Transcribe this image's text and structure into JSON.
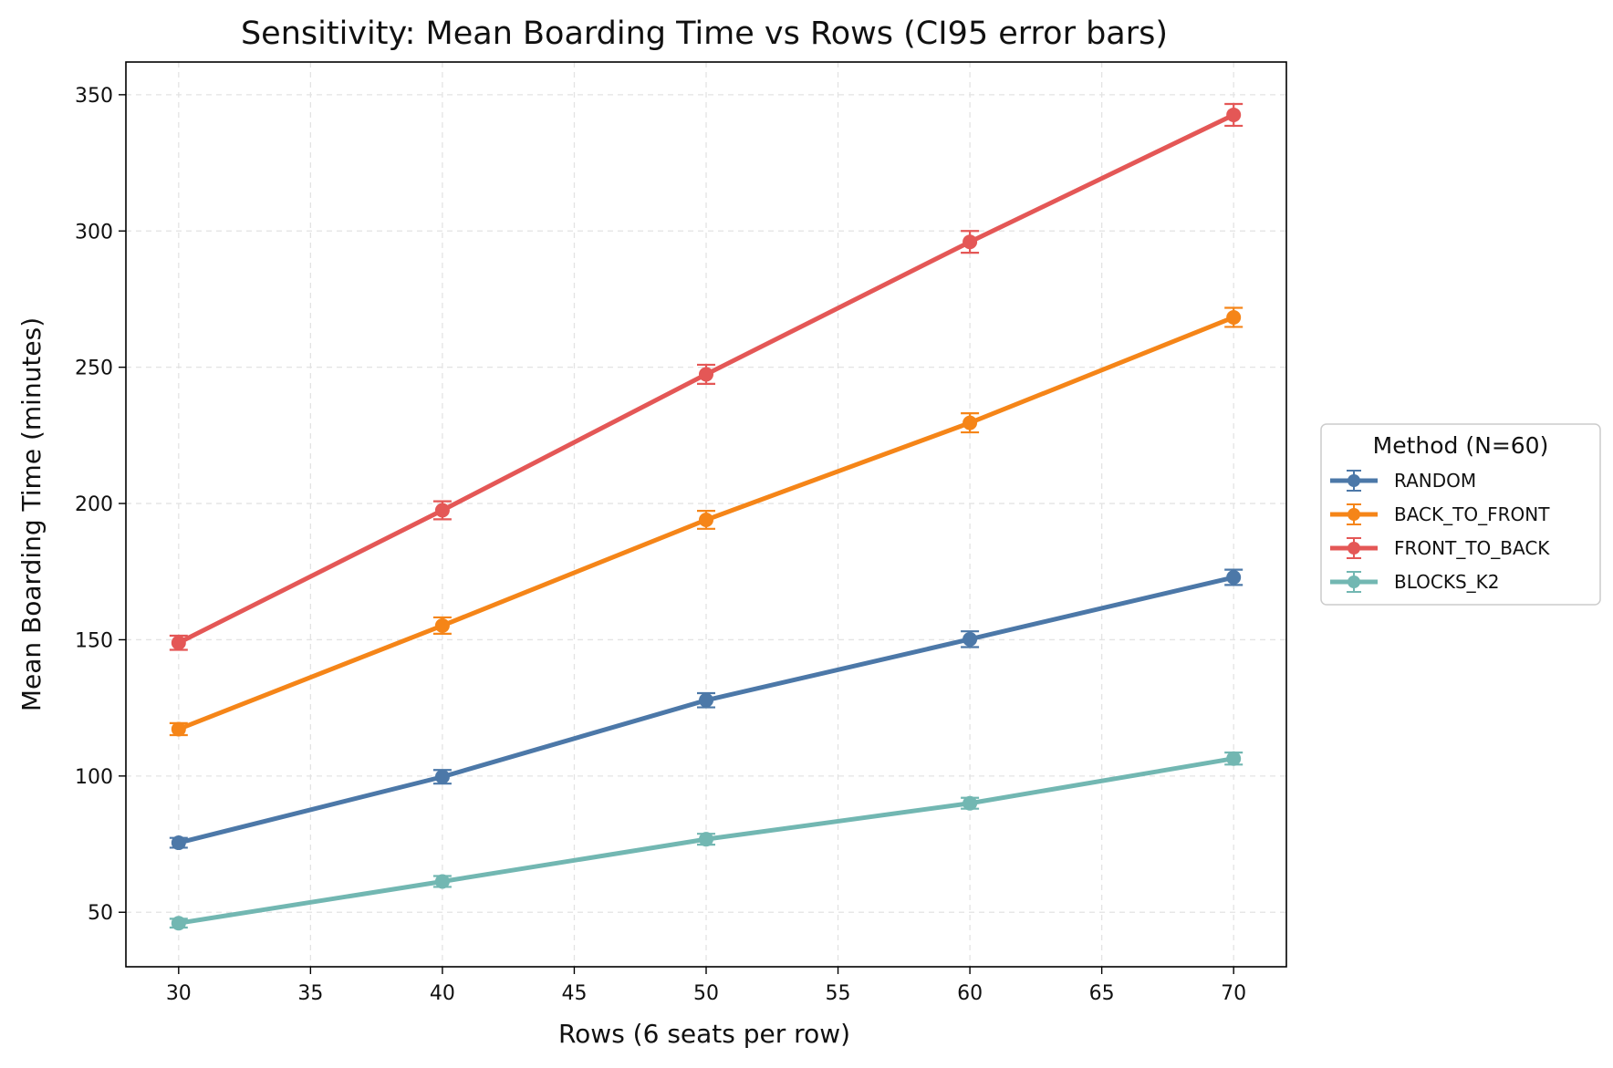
{
  "chart_data": {
    "type": "line",
    "title": "Sensitivity: Mean Boarding Time vs Rows (CI95 error bars)",
    "xlabel": "Rows (6 seats per row)",
    "ylabel": "Mean Boarding Time (minutes)",
    "x": [
      30,
      40,
      50,
      60,
      70
    ],
    "xlim": [
      28,
      72
    ],
    "ylim": [
      30,
      362
    ],
    "xticks": [
      30,
      35,
      40,
      45,
      50,
      55,
      60,
      65,
      70
    ],
    "yticks": [
      50,
      100,
      150,
      200,
      250,
      300,
      350
    ],
    "grid": true,
    "error_bars": "CI95",
    "legend": {
      "title": "Method (N=60)",
      "placement": "outside right"
    },
    "series": [
      {
        "name": "RANDOM",
        "color": "#4c78a8",
        "values": [
          75.5,
          99.7,
          127.8,
          150.2,
          172.9
        ],
        "ci": [
          1.8,
          2.5,
          2.6,
          2.9,
          2.8
        ]
      },
      {
        "name": "BACK_TO_FRONT",
        "color": "#f58518",
        "values": [
          117.2,
          155.2,
          194.0,
          229.6,
          268.3
        ],
        "ci": [
          2.2,
          3.0,
          3.3,
          3.5,
          3.5
        ]
      },
      {
        "name": "FRONT_TO_BACK",
        "color": "#e45756",
        "values": [
          148.9,
          197.5,
          247.4,
          296.0,
          342.6
        ],
        "ci": [
          2.6,
          3.3,
          3.5,
          4.0,
          4.0
        ]
      },
      {
        "name": "BLOCKS_K2",
        "color": "#72b7b2",
        "values": [
          46.0,
          61.3,
          76.8,
          90.0,
          106.4
        ],
        "ci": [
          1.6,
          2.0,
          2.0,
          2.0,
          2.2
        ]
      }
    ]
  }
}
